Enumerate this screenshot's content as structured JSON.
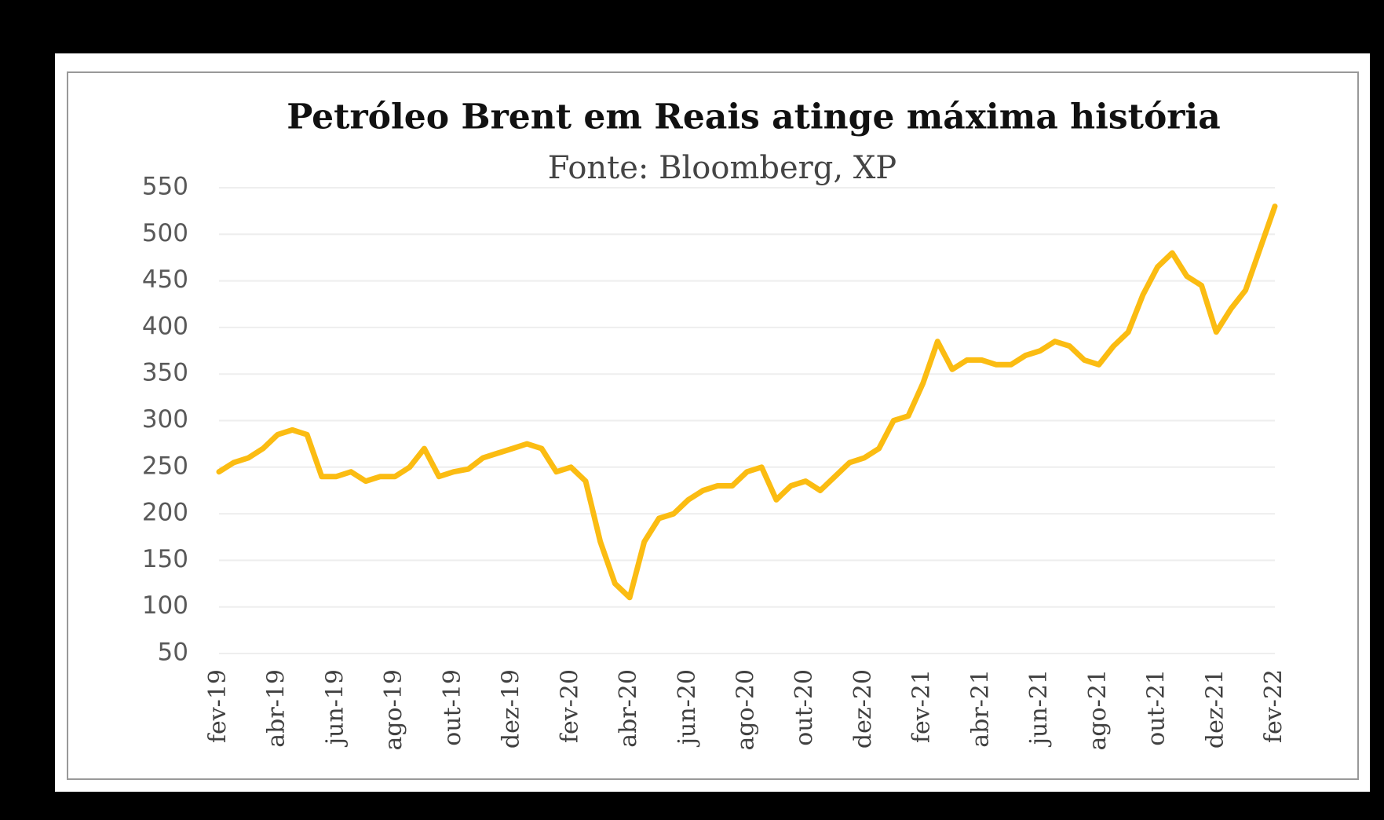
{
  "chart_data": {
    "type": "line",
    "title": "Petróleo Brent em Reais atinge máxima história",
    "subtitle": "Fonte: Bloomberg, XP",
    "x": [
      "fev-19",
      null,
      null,
      null,
      "abr-19",
      null,
      null,
      null,
      "jun-19",
      null,
      null,
      null,
      "ago-19",
      null,
      null,
      null,
      "out-19",
      null,
      null,
      null,
      "dez-19",
      null,
      null,
      null,
      "fev-20",
      null,
      null,
      null,
      "abr-20",
      null,
      null,
      null,
      "jun-20",
      null,
      null,
      null,
      "ago-20",
      null,
      null,
      null,
      "out-20",
      null,
      null,
      null,
      "dez-20",
      null,
      null,
      null,
      "fev-21",
      null,
      null,
      null,
      "abr-21",
      null,
      null,
      null,
      "jun-21",
      null,
      null,
      null,
      "ago-21",
      null,
      null,
      null,
      "out-21",
      null,
      null,
      null,
      "dez-21",
      null,
      null,
      null,
      "fev-22"
    ],
    "series": [
      {
        "color": "#fbbc12",
        "values": [
          245,
          255,
          260,
          270,
          285,
          290,
          285,
          240,
          240,
          245,
          235,
          240,
          240,
          250,
          270,
          240,
          245,
          248,
          260,
          265,
          270,
          275,
          270,
          245,
          250,
          235,
          170,
          125,
          110,
          170,
          195,
          200,
          215,
          225,
          230,
          230,
          245,
          250,
          215,
          230,
          235,
          225,
          240,
          255,
          260,
          270,
          300,
          305,
          340,
          385,
          355,
          365,
          365,
          360,
          360,
          370,
          375,
          385,
          380,
          365,
          360,
          380,
          395,
          435,
          465,
          480,
          455,
          445,
          395,
          420,
          440,
          485,
          530
        ]
      }
    ],
    "ylim": [
      50,
      550
    ],
    "yticks": [
      50,
      100,
      150,
      200,
      250,
      300,
      350,
      400,
      450,
      500,
      550
    ],
    "grid": true
  }
}
